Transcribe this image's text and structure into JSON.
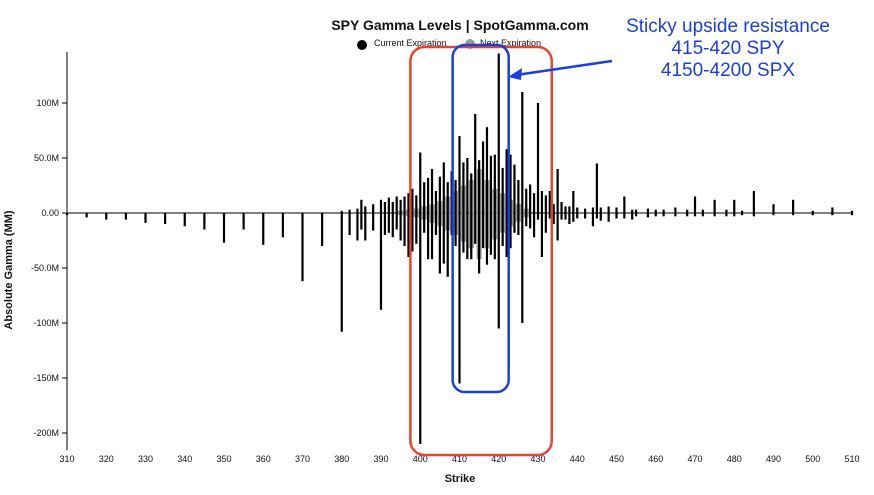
{
  "chart_data": {
    "type": "bar",
    "title": "SPY Gamma Levels | SpotGamma.com",
    "xlabel": "Strike",
    "ylabel": "Absolute Gamma (MM)",
    "xlim": [
      310,
      510
    ],
    "ylim": [
      -210,
      145
    ],
    "x_ticks": [
      "310",
      "320",
      "330",
      "340",
      "350",
      "360",
      "370",
      "380",
      "390",
      "400",
      "410",
      "420",
      "430",
      "440",
      "450",
      "460",
      "470",
      "480",
      "490",
      "500",
      "510"
    ],
    "x_tick_values": [
      310,
      320,
      330,
      340,
      350,
      360,
      370,
      380,
      390,
      400,
      410,
      420,
      430,
      440,
      450,
      460,
      470,
      480,
      490,
      500,
      510
    ],
    "y_ticks": [
      "100M",
      "50.0M",
      "0.00",
      "-50.0M",
      "-100M",
      "-150M",
      "-200M"
    ],
    "y_tick_values": [
      100,
      50,
      0,
      -50,
      -100,
      -150,
      -200
    ],
    "legend": [
      "Current Expiration",
      "Next Expiration"
    ],
    "colors": {
      "current": "#000000",
      "next": "#9a9a9a",
      "red_box": "#e8452c",
      "blue_box": "#1a3fe0",
      "annotation": "#1a3fe0"
    },
    "series": [
      {
        "name": "Current Expiration",
        "x": [
          310,
          315,
          320,
          325,
          330,
          335,
          340,
          345,
          350,
          355,
          360,
          365,
          370,
          375,
          380,
          382,
          384,
          385,
          386,
          388,
          390,
          391,
          392,
          393,
          394,
          395,
          396,
          397,
          398,
          399,
          400,
          401,
          402,
          403,
          404,
          405,
          406,
          407,
          408,
          409,
          410,
          411,
          412,
          413,
          414,
          415,
          416,
          417,
          418,
          419,
          420,
          421,
          422,
          423,
          424,
          425,
          426,
          427,
          428,
          429,
          430,
          431,
          432,
          433,
          434,
          435,
          436,
          437,
          438,
          439,
          440,
          442,
          444,
          445,
          446,
          448,
          450,
          452,
          454,
          455,
          458,
          460,
          462,
          465,
          468,
          470,
          472,
          475,
          478,
          480,
          482,
          485,
          490,
          495,
          500,
          505,
          510
        ],
        "positive": [
          0,
          0,
          0,
          0,
          0,
          0,
          0,
          0,
          0,
          0,
          0,
          0,
          0,
          0,
          2,
          3,
          4,
          12,
          6,
          8,
          12,
          10,
          14,
          10,
          15,
          12,
          15,
          18,
          22,
          16,
          55,
          28,
          32,
          40,
          20,
          33,
          46,
          28,
          38,
          30,
          70,
          46,
          50,
          36,
          90,
          48,
          65,
          78,
          52,
          53,
          145,
          41,
          58,
          53,
          44,
          30,
          110,
          22,
          26,
          18,
          100,
          20,
          16,
          20,
          8,
          40,
          10,
          6,
          6,
          20,
          5,
          4,
          5,
          45,
          5,
          6,
          5,
          15,
          3,
          3,
          4,
          3,
          3,
          5,
          3,
          15,
          3,
          12,
          3,
          12,
          2,
          20,
          8,
          12,
          2,
          5,
          2
        ],
        "negative": [
          -2,
          -4,
          -6,
          -6,
          -9,
          -10,
          -12,
          -15,
          -27,
          -15,
          -29,
          -22,
          -62,
          -30,
          -108,
          -20,
          -25,
          -15,
          -25,
          -16,
          -88,
          -20,
          -18,
          -22,
          -15,
          -25,
          -30,
          -40,
          -35,
          -28,
          -210,
          -18,
          -42,
          -42,
          -20,
          -55,
          -46,
          -58,
          -20,
          -30,
          -155,
          -36,
          -42,
          -42,
          -28,
          -55,
          -32,
          -47,
          -38,
          -42,
          -105,
          -30,
          -40,
          -32,
          -18,
          -20,
          -100,
          -12,
          -14,
          -22,
          -6,
          -40,
          -18,
          -5,
          -10,
          -25,
          -6,
          -6,
          -10,
          -8,
          -5,
          -5,
          -12,
          -5,
          -7,
          -8,
          -5,
          -5,
          -6,
          -3,
          -4,
          -3,
          -3,
          -3,
          -3,
          -3,
          -3,
          -3,
          -3,
          -3,
          -2,
          -3,
          -2,
          -2,
          -2,
          -2,
          -2
        ]
      },
      {
        "name": "Next Expiration",
        "x": [
          395,
          397,
          399,
          401,
          403,
          405,
          407,
          409,
          411,
          413,
          415,
          417,
          419,
          421,
          423,
          425,
          427
        ],
        "positive": [
          2,
          3,
          4,
          6,
          8,
          11,
          15,
          20,
          25,
          30,
          40,
          30,
          22,
          18,
          12,
          8,
          4
        ],
        "negative": [
          -2,
          -3,
          -4,
          -6,
          -9,
          -12,
          -16,
          -20,
          -26,
          -32,
          -42,
          -32,
          -24,
          -18,
          -12,
          -8,
          -4
        ]
      }
    ]
  },
  "annotation": {
    "line1": "Sticky upside resistance",
    "line2": "415-420 SPY",
    "line3": "4150-4200 SPX"
  },
  "highlights": [
    {
      "name": "red-box",
      "x_range": [
        398,
        433
      ]
    },
    {
      "name": "blue-box",
      "x_range": [
        408,
        421
      ]
    }
  ]
}
